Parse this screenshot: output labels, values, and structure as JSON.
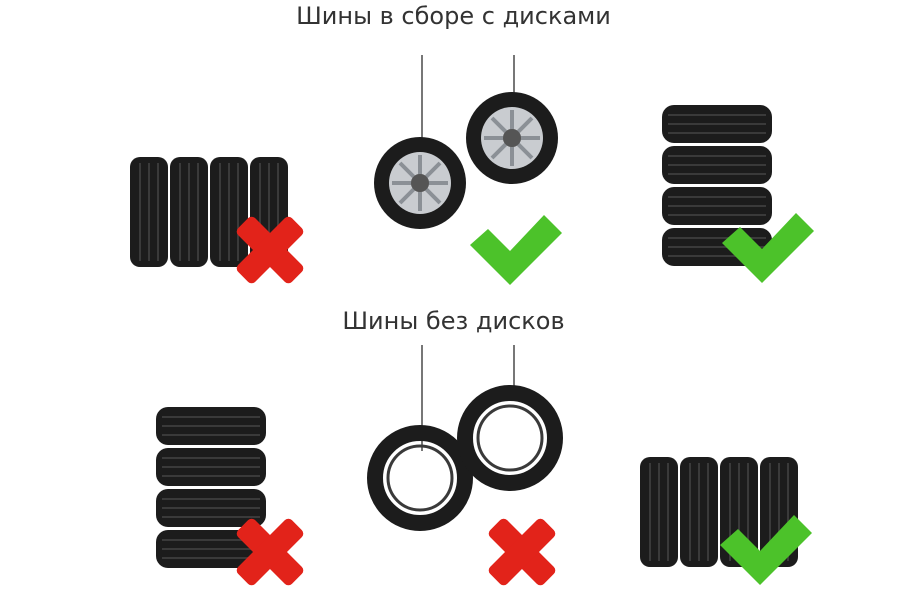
{
  "headings": {
    "with_rims": "Шины в сборе с дисками",
    "without_rims": "Шины без дисков"
  },
  "sections": [
    {
      "name": "with_rims",
      "items": [
        {
          "storage": "vertical-row",
          "verdict": "wrong",
          "mark": "red-cross-icon"
        },
        {
          "storage": "hanging",
          "verdict": "correct",
          "mark": "green-check-icon"
        },
        {
          "storage": "stacked",
          "verdict": "correct",
          "mark": "green-check-icon"
        }
      ]
    },
    {
      "name": "without_rims",
      "items": [
        {
          "storage": "stacked",
          "verdict": "wrong",
          "mark": "red-cross-icon"
        },
        {
          "storage": "hanging",
          "verdict": "wrong",
          "mark": "red-cross-icon"
        },
        {
          "storage": "vertical-row",
          "verdict": "correct",
          "mark": "green-check-icon"
        }
      ]
    }
  ],
  "colors": {
    "tire": "#1c1c1c",
    "tread": "#3a3a3a",
    "rim": "#c9ccd0",
    "check": "#4cc22a",
    "cross": "#e2231a",
    "heading": "#333333"
  }
}
